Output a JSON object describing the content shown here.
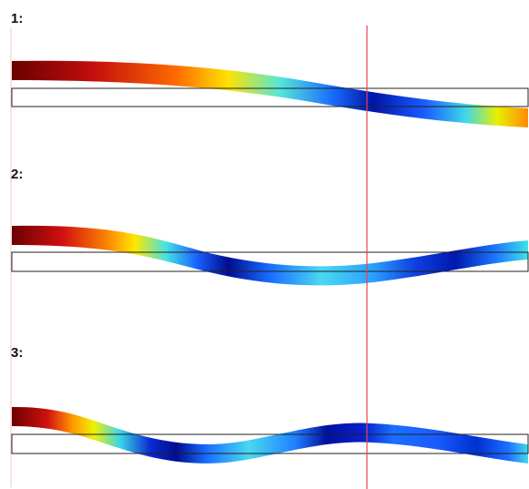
{
  "modes": [
    {
      "label": "1:"
    },
    {
      "label": "2:"
    },
    {
      "label": "3:"
    }
  ],
  "colors": {
    "reference_line": "#e8424c",
    "undeformed_outline": "#222222",
    "colormap": [
      "#7a0000",
      "#d01010",
      "#ff7a00",
      "#ffe600",
      "#3fe0e0",
      "#1e6cff",
      "#0010a0"
    ]
  }
}
